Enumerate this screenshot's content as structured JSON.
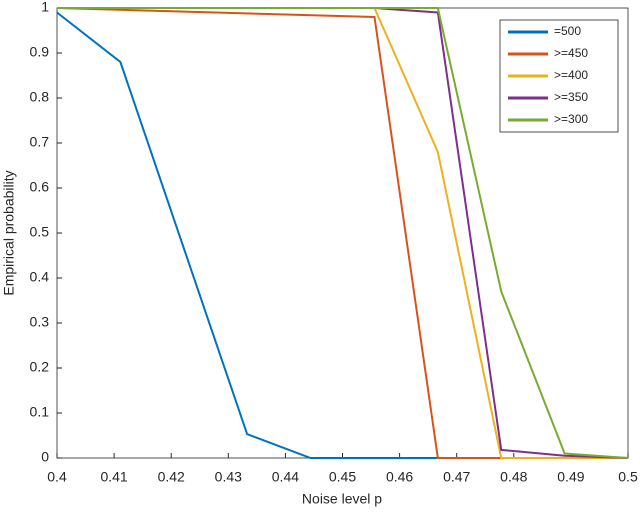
{
  "chart_data": {
    "type": "line",
    "xlabel": "Noise level p",
    "ylabel": "Empirical probability",
    "xlim": [
      0.4,
      0.5
    ],
    "ylim": [
      0,
      1
    ],
    "xticks": [
      0.4,
      0.41,
      0.42,
      0.43,
      0.44,
      0.45,
      0.46,
      0.47,
      0.48,
      0.49,
      0.5
    ],
    "yticks": [
      0,
      0.1,
      0.2,
      0.3,
      0.4,
      0.5,
      0.6,
      0.7,
      0.8,
      0.9,
      1
    ],
    "legend": "upper right",
    "series": [
      {
        "name": "=500",
        "color": "#0072BD",
        "x": [
          0.4,
          0.4111,
          0.4333,
          0.4444,
          0.5
        ],
        "values": [
          0.99,
          0.88,
          0.053,
          0,
          0
        ]
      },
      {
        "name": ">=450",
        "color": "#D95319",
        "x": [
          0.4,
          0.4556,
          0.4667,
          0.5
        ],
        "values": [
          1,
          0.98,
          0,
          0
        ]
      },
      {
        "name": ">=400",
        "color": "#EDB120",
        "x": [
          0.4,
          0.4556,
          0.4667,
          0.4778,
          0.5
        ],
        "values": [
          1,
          1,
          0.68,
          0,
          0
        ]
      },
      {
        "name": ">=350",
        "color": "#7E2F8E",
        "x": [
          0.4,
          0.4556,
          0.4667,
          0.4778,
          0.4889,
          0.5
        ],
        "values": [
          1,
          1,
          0.99,
          0.018,
          0.005,
          0
        ]
      },
      {
        "name": ">=300",
        "color": "#77AC30",
        "x": [
          0.4,
          0.4667,
          0.4778,
          0.4889,
          0.5
        ],
        "values": [
          1,
          1,
          0.37,
          0.01,
          0
        ]
      }
    ]
  }
}
